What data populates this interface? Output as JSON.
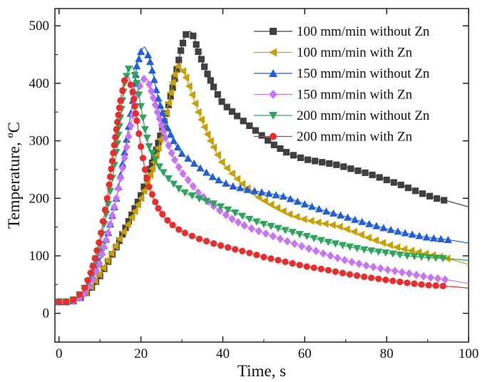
{
  "chart_data": {
    "type": "line",
    "title": "",
    "xlabel": "Time, s",
    "ylabel": "Temperature, ºC",
    "xlim": [
      -1,
      100
    ],
    "ylim": [
      -50,
      530
    ],
    "x_ticks": [
      0,
      20,
      40,
      60,
      80,
      100
    ],
    "y_ticks": [
      0,
      100,
      200,
      300,
      400,
      500
    ],
    "grid": false,
    "legend_position": "top-right",
    "series": [
      {
        "name": "100 mm/min without Zn",
        "color": "#404040",
        "marker": "square",
        "points": [
          [
            0,
            20
          ],
          [
            2,
            20
          ],
          [
            4,
            22
          ],
          [
            6,
            30
          ],
          [
            8,
            45
          ],
          [
            10,
            65
          ],
          [
            12,
            90
          ],
          [
            14,
            115
          ],
          [
            16,
            145
          ],
          [
            18,
            175
          ],
          [
            20,
            205
          ],
          [
            22,
            245
          ],
          [
            24,
            290
          ],
          [
            26,
            340
          ],
          [
            28,
            400
          ],
          [
            30,
            465
          ],
          [
            31,
            485
          ],
          [
            32,
            490
          ],
          [
            33,
            480
          ],
          [
            34,
            455
          ],
          [
            36,
            420
          ],
          [
            38,
            390
          ],
          [
            40,
            365
          ],
          [
            44,
            340
          ],
          [
            48,
            318
          ],
          [
            52,
            295
          ],
          [
            56,
            278
          ],
          [
            60,
            268
          ],
          [
            64,
            263
          ],
          [
            68,
            258
          ],
          [
            72,
            250
          ],
          [
            76,
            242
          ],
          [
            80,
            232
          ],
          [
            84,
            222
          ],
          [
            88,
            210
          ],
          [
            92,
            200
          ],
          [
            95,
            195
          ],
          [
            100,
            185
          ]
        ]
      },
      {
        "name": "100 mm/min with Zn",
        "color": "#c8a000",
        "marker": "triangle-left",
        "points": [
          [
            0,
            20
          ],
          [
            2,
            20
          ],
          [
            4,
            22
          ],
          [
            6,
            32
          ],
          [
            8,
            48
          ],
          [
            10,
            70
          ],
          [
            12,
            95
          ],
          [
            14,
            120
          ],
          [
            16,
            145
          ],
          [
            18,
            170
          ],
          [
            20,
            200
          ],
          [
            22,
            235
          ],
          [
            24,
            280
          ],
          [
            26,
            340
          ],
          [
            28,
            410
          ],
          [
            29,
            430
          ],
          [
            30,
            425
          ],
          [
            31,
            410
          ],
          [
            32,
            390
          ],
          [
            34,
            350
          ],
          [
            36,
            315
          ],
          [
            38,
            285
          ],
          [
            40,
            260
          ],
          [
            44,
            230
          ],
          [
            48,
            205
          ],
          [
            52,
            188
          ],
          [
            56,
            173
          ],
          [
            60,
            163
          ],
          [
            64,
            157
          ],
          [
            68,
            152
          ],
          [
            72,
            142
          ],
          [
            76,
            130
          ],
          [
            80,
            120
          ],
          [
            84,
            112
          ],
          [
            88,
            106
          ],
          [
            92,
            100
          ],
          [
            95,
            95
          ],
          [
            100,
            85
          ]
        ]
      },
      {
        "name": "150 mm/min without Zn",
        "color": "#1f5fdd",
        "marker": "triangle-up",
        "points": [
          [
            0,
            20
          ],
          [
            2,
            20
          ],
          [
            4,
            23
          ],
          [
            6,
            35
          ],
          [
            8,
            60
          ],
          [
            10,
            95
          ],
          [
            12,
            140
          ],
          [
            14,
            200
          ],
          [
            16,
            280
          ],
          [
            18,
            370
          ],
          [
            19,
            430
          ],
          [
            20,
            455
          ],
          [
            21,
            462
          ],
          [
            22,
            445
          ],
          [
            23,
            415
          ],
          [
            24,
            380
          ],
          [
            26,
            330
          ],
          [
            28,
            300
          ],
          [
            30,
            278
          ],
          [
            34,
            255
          ],
          [
            38,
            235
          ],
          [
            42,
            222
          ],
          [
            46,
            215
          ],
          [
            50,
            210
          ],
          [
            55,
            203
          ],
          [
            60,
            190
          ],
          [
            65,
            178
          ],
          [
            70,
            168
          ],
          [
            75,
            157
          ],
          [
            80,
            147
          ],
          [
            85,
            139
          ],
          [
            90,
            132
          ],
          [
            95,
            128
          ],
          [
            100,
            122
          ]
        ]
      },
      {
        "name": "150 mm/min with Zn",
        "color": "#c673f5",
        "marker": "diamond",
        "points": [
          [
            0,
            20
          ],
          [
            2,
            20
          ],
          [
            4,
            22
          ],
          [
            6,
            32
          ],
          [
            8,
            55
          ],
          [
            10,
            90
          ],
          [
            12,
            140
          ],
          [
            14,
            200
          ],
          [
            16,
            270
          ],
          [
            18,
            345
          ],
          [
            19,
            380
          ],
          [
            20,
            400
          ],
          [
            21,
            410
          ],
          [
            22,
            398
          ],
          [
            23,
            375
          ],
          [
            24,
            350
          ],
          [
            26,
            305
          ],
          [
            28,
            270
          ],
          [
            30,
            245
          ],
          [
            34,
            210
          ],
          [
            38,
            185
          ],
          [
            42,
            165
          ],
          [
            46,
            150
          ],
          [
            50,
            140
          ],
          [
            55,
            127
          ],
          [
            60,
            115
          ],
          [
            65,
            103
          ],
          [
            70,
            92
          ],
          [
            75,
            83
          ],
          [
            80,
            76
          ],
          [
            85,
            70
          ],
          [
            90,
            63
          ],
          [
            95,
            58
          ],
          [
            100,
            52
          ]
        ]
      },
      {
        "name": "200 mm/min without Zn",
        "color": "#2aa55a",
        "marker": "triangle-down",
        "points": [
          [
            0,
            20
          ],
          [
            2,
            20
          ],
          [
            4,
            25
          ],
          [
            6,
            40
          ],
          [
            8,
            70
          ],
          [
            10,
            120
          ],
          [
            12,
            190
          ],
          [
            14,
            280
          ],
          [
            15,
            340
          ],
          [
            16,
            400
          ],
          [
            17,
            425
          ],
          [
            18,
            428
          ],
          [
            19,
            400
          ],
          [
            20,
            360
          ],
          [
            21,
            320
          ],
          [
            22,
            290
          ],
          [
            24,
            260
          ],
          [
            26,
            240
          ],
          [
            28,
            225
          ],
          [
            30,
            212
          ],
          [
            34,
            200
          ],
          [
            38,
            190
          ],
          [
            42,
            178
          ],
          [
            46,
            165
          ],
          [
            50,
            155
          ],
          [
            55,
            145
          ],
          [
            60,
            135
          ],
          [
            65,
            125
          ],
          [
            70,
            117
          ],
          [
            75,
            110
          ],
          [
            80,
            105
          ],
          [
            85,
            100
          ],
          [
            90,
            97
          ],
          [
            95,
            95
          ],
          [
            100,
            92
          ]
        ]
      },
      {
        "name": "200 mm/min with Zn",
        "color": "#ee2b2b",
        "marker": "circle",
        "points": [
          [
            0,
            20
          ],
          [
            2,
            20
          ],
          [
            4,
            25
          ],
          [
            6,
            40
          ],
          [
            8,
            75
          ],
          [
            10,
            130
          ],
          [
            12,
            210
          ],
          [
            13,
            265
          ],
          [
            14,
            320
          ],
          [
            15,
            370
          ],
          [
            16,
            405
          ],
          [
            17,
            410
          ],
          [
            18,
            385
          ],
          [
            19,
            335
          ],
          [
            20,
            290
          ],
          [
            21,
            250
          ],
          [
            22,
            220
          ],
          [
            24,
            185
          ],
          [
            26,
            165
          ],
          [
            28,
            152
          ],
          [
            30,
            142
          ],
          [
            34,
            130
          ],
          [
            38,
            121
          ],
          [
            42,
            113
          ],
          [
            46,
            106
          ],
          [
            50,
            98
          ],
          [
            55,
            90
          ],
          [
            60,
            82
          ],
          [
            65,
            76
          ],
          [
            70,
            69
          ],
          [
            75,
            63
          ],
          [
            80,
            58
          ],
          [
            85,
            53
          ],
          [
            90,
            49
          ],
          [
            95,
            47
          ],
          [
            100,
            44
          ]
        ]
      }
    ]
  }
}
